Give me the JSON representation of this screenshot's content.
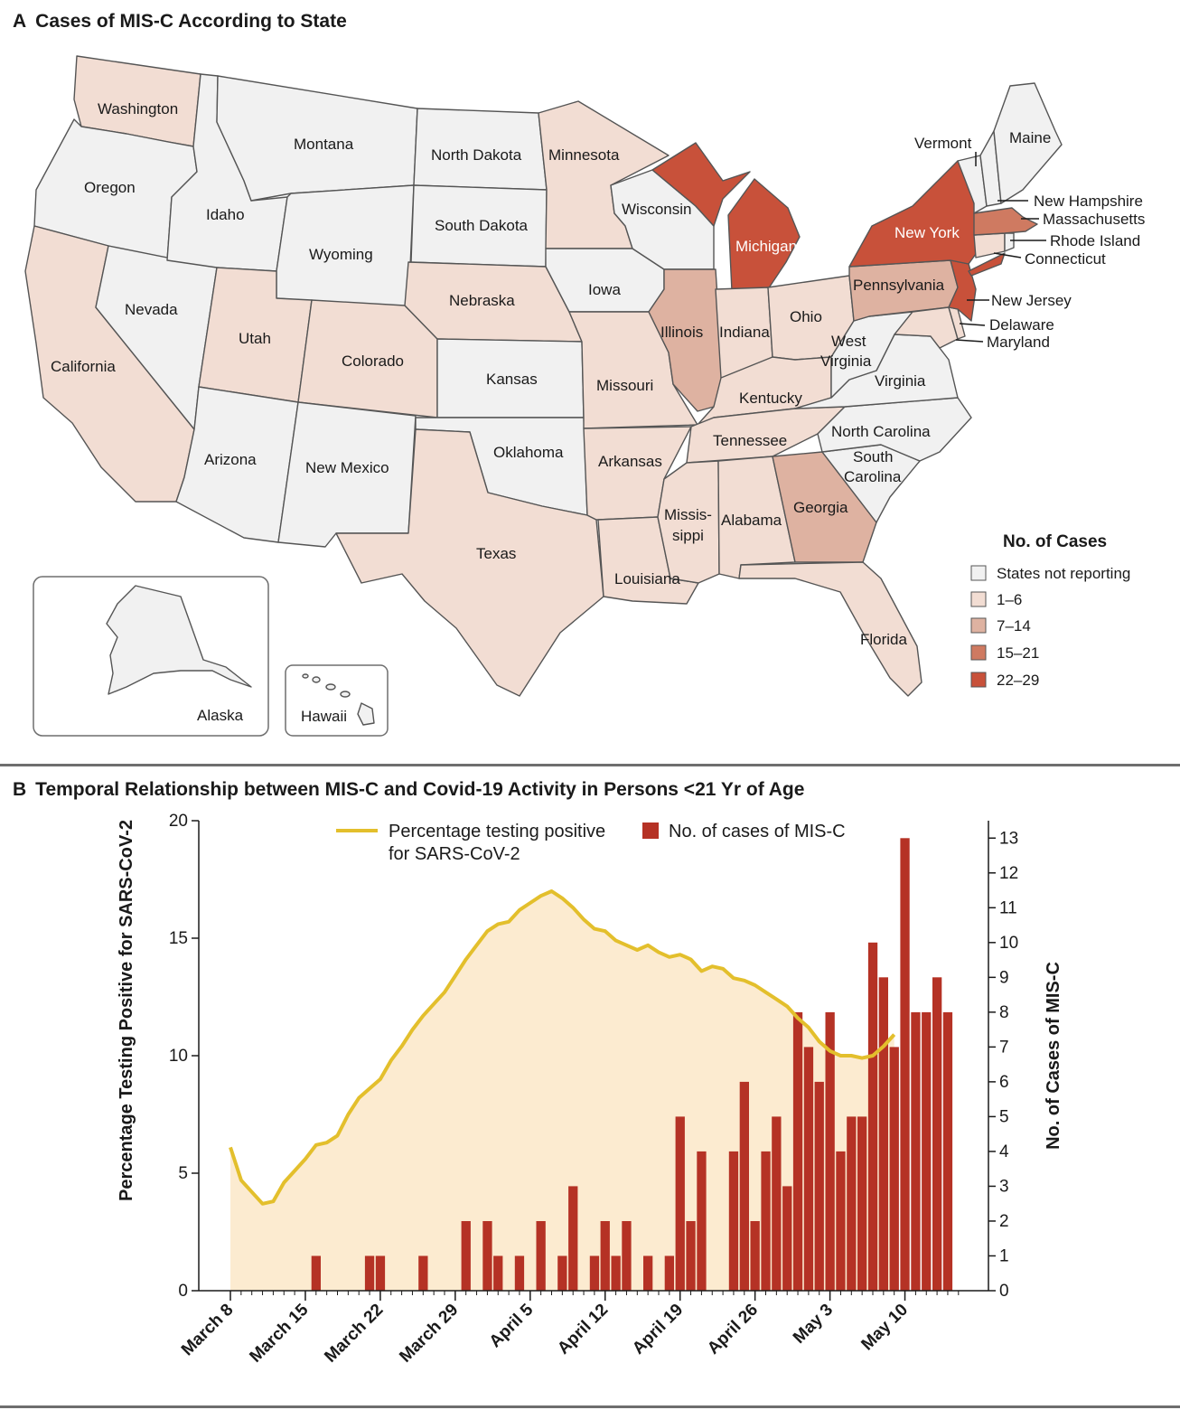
{
  "panel_a": {
    "letter": "A",
    "title": "Cases of MIS-C According to State",
    "legend_title": "No. of Cases",
    "legend": [
      {
        "label": "States not reporting",
        "color": "#f1f1f1"
      },
      {
        "label": "1–6",
        "color": "#f2ddd3"
      },
      {
        "label": "7–14",
        "color": "#deb2a1"
      },
      {
        "label": "15–21",
        "color": "#cf7a61"
      },
      {
        "label": "22–29",
        "color": "#c8513a"
      }
    ],
    "states": {
      "washington": "Washington",
      "oregon": "Oregon",
      "california": "California",
      "nevada": "Nevada",
      "idaho": "Idaho",
      "montana": "Montana",
      "wyoming": "Wyoming",
      "utah": "Utah",
      "arizona": "Arizona",
      "colorado": "Colorado",
      "new_mexico": "New Mexico",
      "north_dakota": "North Dakota",
      "south_dakota": "South Dakota",
      "nebraska": "Nebraska",
      "kansas": "Kansas",
      "oklahoma": "Oklahoma",
      "texas": "Texas",
      "minnesota": "Minnesota",
      "iowa": "Iowa",
      "missouri": "Missouri",
      "arkansas": "Arkansas",
      "louisiana": "Louisiana",
      "wisconsin": "Wisconsin",
      "illinois": "Illinois",
      "michigan": "Michigan",
      "indiana": "Indiana",
      "ohio": "Ohio",
      "kentucky": "Kentucky",
      "tennessee": "Tennessee",
      "mississippi_1": "Missis-",
      "mississippi_2": "sippi",
      "alabama": "Alabama",
      "georgia": "Georgia",
      "florida": "Florida",
      "south_carolina_1": "South",
      "south_carolina_2": "Carolina",
      "north_carolina": "North Carolina",
      "virginia": "Virginia",
      "west_virginia_1": "West",
      "west_virginia_2": "Virginia",
      "pennsylvania": "Pennsylvania",
      "new_york": "New York",
      "vermont": "Vermont",
      "maine": "Maine",
      "new_hampshire": "New Hampshire",
      "massachusetts": "Massachusetts",
      "rhode_island": "Rhode Island",
      "connecticut": "Connecticut",
      "new_jersey": "New Jersey",
      "delaware": "Delaware",
      "maryland": "Maryland",
      "alaska": "Alaska",
      "hawaii": "Hawaii"
    }
  },
  "panel_b": {
    "letter": "B",
    "title": "Temporal Relationship between MIS-C and Covid-19 Activity in Persons <21 Yr of Age"
  },
  "chart_data": {
    "type": "bar",
    "title": "Temporal Relationship between MIS-C and Covid-19 Activity in Persons <21 Yr of Age",
    "xlabel": "",
    "ylabel": "Percentage Testing Positive for SARS-CoV-2",
    "y2label": "No. of Cases of MIS-C",
    "ylim": [
      0,
      20
    ],
    "y2lim": [
      0,
      13.5
    ],
    "yticks": [
      0,
      5,
      10,
      15,
      20
    ],
    "y2ticks": [
      0,
      1,
      2,
      3,
      4,
      5,
      6,
      7,
      8,
      9,
      10,
      11,
      12,
      13
    ],
    "x_tick_labels": [
      "March 8",
      "March 15",
      "March 22",
      "March 29",
      "April 5",
      "April 12",
      "April 19",
      "April 26",
      "May 3",
      "May 10"
    ],
    "x_start_label": "March 8",
    "legend_line": "Percentage testing positive",
    "legend_line_2": "for SARS-CoV-2",
    "legend_bar": "No. of cases of MIS-C",
    "colors": {
      "line": "#e3bf2c",
      "area": "#fcebd0",
      "bar": "#b53225"
    },
    "series": [
      {
        "name": "Percentage testing positive for SARS-CoV-2",
        "type": "area-line",
        "values": [
          6.1,
          4.7,
          4.2,
          3.7,
          3.8,
          4.6,
          5.1,
          5.6,
          6.2,
          6.3,
          6.6,
          7.5,
          8.2,
          8.6,
          9.0,
          9.8,
          10.4,
          11.1,
          11.7,
          12.2,
          12.7,
          13.4,
          14.1,
          14.7,
          15.3,
          15.6,
          15.7,
          16.2,
          16.5,
          16.8,
          17.0,
          16.7,
          16.3,
          15.8,
          15.4,
          15.3,
          14.9,
          14.7,
          14.5,
          14.7,
          14.4,
          14.2,
          14.3,
          14.1,
          13.6,
          13.8,
          13.7,
          13.3,
          13.2,
          13.0,
          12.7,
          12.4,
          12.1,
          11.6,
          11.2,
          10.6,
          10.2,
          10.0,
          10.0,
          9.9,
          10.0,
          10.4,
          10.9
        ]
      },
      {
        "name": "No. of cases of MIS-C",
        "type": "bar",
        "values": [
          0,
          0,
          0,
          0,
          0,
          0,
          0,
          0,
          1,
          0,
          0,
          0,
          0,
          1,
          1,
          0,
          0,
          0,
          1,
          0,
          0,
          0,
          2,
          0,
          2,
          1,
          0,
          1,
          0,
          2,
          0,
          1,
          3,
          0,
          1,
          2,
          1,
          2,
          0,
          1,
          0,
          1,
          5,
          2,
          4,
          0,
          0,
          4,
          6,
          2,
          4,
          5,
          3,
          8,
          7,
          6,
          8,
          4,
          5,
          5,
          10,
          9,
          7,
          13,
          8,
          8,
          9,
          8
        ]
      }
    ]
  }
}
